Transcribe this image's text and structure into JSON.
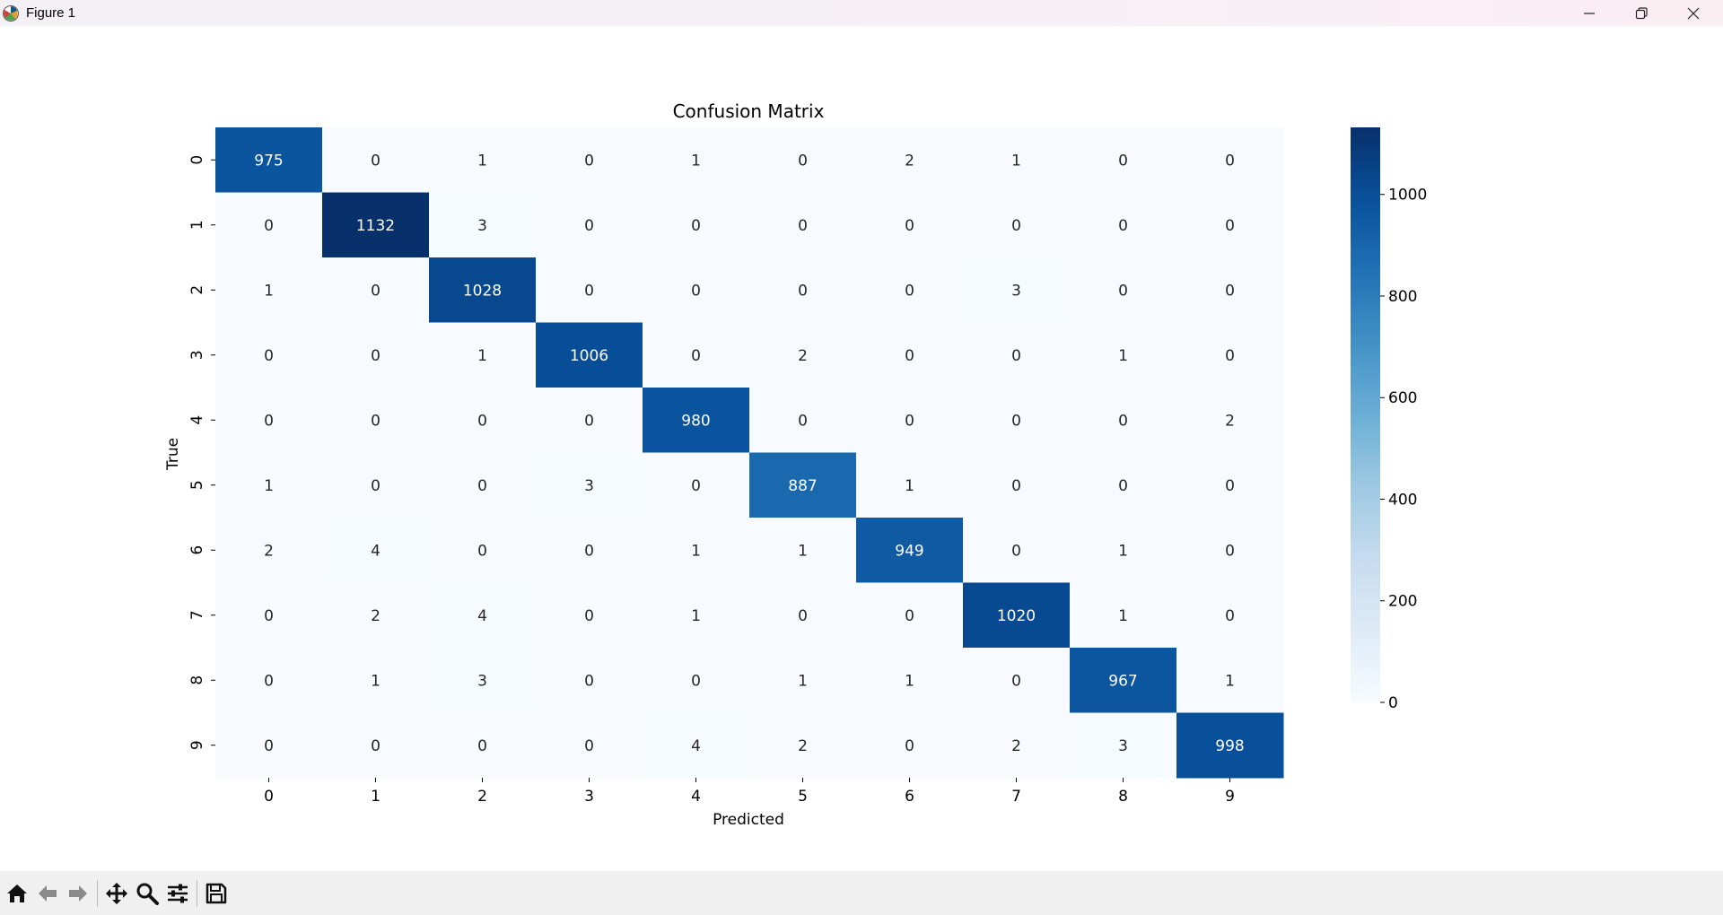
{
  "window": {
    "title": "Figure 1",
    "icons": [
      "matplotlib-logo-icon",
      "minimize-icon",
      "restore-icon",
      "close-icon"
    ]
  },
  "toolbar": {
    "buttons": [
      "home-icon",
      "back-arrow-icon",
      "forward-arrow-icon",
      "pan-icon",
      "zoom-icon",
      "configure-subplots-icon",
      "save-icon"
    ]
  },
  "chart_data": {
    "type": "heatmap",
    "title": "Confusion Matrix",
    "xlabel": "Predicted",
    "ylabel": "True",
    "x_categories": [
      "0",
      "1",
      "2",
      "3",
      "4",
      "5",
      "6",
      "7",
      "8",
      "9"
    ],
    "y_categories": [
      "0",
      "1",
      "2",
      "3",
      "4",
      "5",
      "6",
      "7",
      "8",
      "9"
    ],
    "values": [
      [
        975,
        0,
        1,
        0,
        1,
        0,
        2,
        1,
        0,
        0
      ],
      [
        0,
        1132,
        3,
        0,
        0,
        0,
        0,
        0,
        0,
        0
      ],
      [
        1,
        0,
        1028,
        0,
        0,
        0,
        0,
        3,
        0,
        0
      ],
      [
        0,
        0,
        1,
        1006,
        0,
        2,
        0,
        0,
        1,
        0
      ],
      [
        0,
        0,
        0,
        0,
        980,
        0,
        0,
        0,
        0,
        2
      ],
      [
        1,
        0,
        0,
        3,
        0,
        887,
        1,
        0,
        0,
        0
      ],
      [
        2,
        4,
        0,
        0,
        1,
        1,
        949,
        0,
        1,
        0
      ],
      [
        0,
        2,
        4,
        0,
        1,
        0,
        0,
        1020,
        1,
        0
      ],
      [
        0,
        1,
        3,
        0,
        0,
        1,
        1,
        0,
        967,
        1
      ],
      [
        0,
        0,
        0,
        0,
        4,
        2,
        0,
        2,
        3,
        998
      ]
    ],
    "colormap": "Blues",
    "colormap_stops": [
      "#f7fbff",
      "#deebf7",
      "#c6dbef",
      "#9ecae1",
      "#6baed6",
      "#4292c6",
      "#2171b5",
      "#08519c",
      "#08306b"
    ],
    "vmin": 0,
    "vmax": 1132,
    "colorbar_ticks": [
      "0",
      "200",
      "400",
      "600",
      "800",
      "1000"
    ],
    "annotation_colors": {
      "dark": "#262626",
      "light": "#ffffff"
    }
  }
}
